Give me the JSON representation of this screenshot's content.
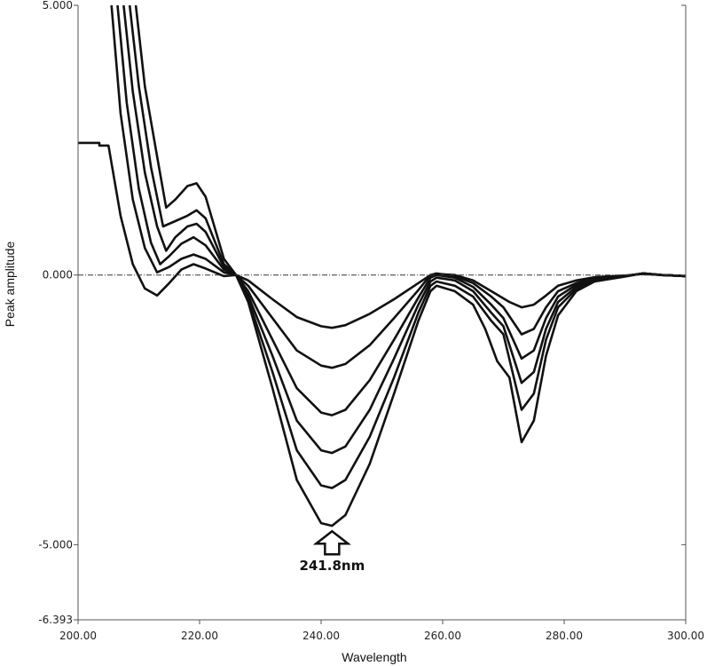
{
  "chart_data": {
    "type": "line",
    "title": "",
    "xlabel": "Wavelength",
    "ylabel": "Peak amplitude",
    "xlim": [
      200,
      300
    ],
    "ylim": [
      -6.393,
      5.0
    ],
    "x_tick_labels": [
      "200.00",
      "220.00",
      "240.00",
      "260.00",
      "280.00",
      "300.00"
    ],
    "x_ticks": [
      200,
      220,
      240,
      260,
      280,
      300
    ],
    "y_tick_labels": [
      "5.000",
      "0.000",
      "-5.000",
      "-6.393"
    ],
    "y_ticks": [
      5.0,
      0.0,
      -5.0,
      -6.393
    ],
    "zero_line": true,
    "grid": false,
    "legend": "none",
    "annotation": {
      "text": "241.8nm",
      "x": 241.8,
      "y": -4.75,
      "marker": "up-arrow"
    },
    "series": [
      {
        "points": [
          [
            200,
            2.45
          ],
          [
            203.5,
            2.45
          ],
          [
            203.5,
            2.4
          ],
          [
            205,
            2.4
          ],
          [
            207,
            1.1
          ],
          [
            209,
            0.2
          ],
          [
            211,
            -0.25
          ],
          [
            213,
            -0.38
          ],
          [
            215,
            -0.15
          ],
          [
            217,
            0.1
          ],
          [
            219,
            0.2
          ],
          [
            221,
            0.12
          ],
          [
            224,
            -0.02
          ],
          [
            226,
            0
          ],
          [
            228,
            -0.1
          ],
          [
            232,
            -0.45
          ],
          [
            236,
            -0.78
          ],
          [
            240,
            -0.95
          ],
          [
            241.8,
            -0.98
          ],
          [
            244,
            -0.93
          ],
          [
            248,
            -0.72
          ],
          [
            252,
            -0.45
          ],
          [
            256,
            -0.15
          ],
          [
            258,
            0
          ],
          [
            259,
            0.02
          ],
          [
            262,
            0
          ],
          [
            265,
            -0.1
          ],
          [
            268,
            -0.3
          ],
          [
            271,
            -0.5
          ],
          [
            273,
            -0.6
          ],
          [
            275,
            -0.55
          ],
          [
            277,
            -0.38
          ],
          [
            279,
            -0.2
          ],
          [
            282,
            -0.1
          ],
          [
            285,
            -0.04
          ],
          [
            290,
            -0.01
          ],
          [
            293,
            0.02
          ],
          [
            296,
            0
          ],
          [
            300,
            -0.02
          ]
        ]
      },
      {
        "points": [
          [
            205.5,
            5.0
          ],
          [
            207,
            3.0
          ],
          [
            209,
            1.4
          ],
          [
            211,
            0.5
          ],
          [
            213,
            0.05
          ],
          [
            215,
            0.15
          ],
          [
            217,
            0.3
          ],
          [
            219,
            0.38
          ],
          [
            221,
            0.3
          ],
          [
            224,
            0.05
          ],
          [
            226,
            0
          ],
          [
            228,
            -0.2
          ],
          [
            232,
            -0.8
          ],
          [
            236,
            -1.4
          ],
          [
            240,
            -1.68
          ],
          [
            241.8,
            -1.72
          ],
          [
            244,
            -1.65
          ],
          [
            248,
            -1.3
          ],
          [
            252,
            -0.8
          ],
          [
            256,
            -0.28
          ],
          [
            258,
            0
          ],
          [
            259,
            0.03
          ],
          [
            262,
            -0.02
          ],
          [
            265,
            -0.15
          ],
          [
            268,
            -0.4
          ],
          [
            270,
            -0.6
          ],
          [
            273,
            -1.1
          ],
          [
            275,
            -1.0
          ],
          [
            277,
            -0.6
          ],
          [
            279,
            -0.3
          ],
          [
            282,
            -0.15
          ],
          [
            285,
            -0.06
          ],
          [
            290,
            -0.02
          ],
          [
            293,
            0.03
          ],
          [
            296,
            0
          ],
          [
            300,
            -0.02
          ]
        ]
      },
      {
        "points": [
          [
            206.5,
            5.0
          ],
          [
            208,
            3.2
          ],
          [
            210,
            1.6
          ],
          [
            212,
            0.6
          ],
          [
            213.5,
            0.2
          ],
          [
            215,
            0.35
          ],
          [
            217,
            0.58
          ],
          [
            219,
            0.7
          ],
          [
            221,
            0.55
          ],
          [
            224,
            0.1
          ],
          [
            226,
            0
          ],
          [
            228,
            -0.3
          ],
          [
            232,
            -1.2
          ],
          [
            236,
            -2.1
          ],
          [
            240,
            -2.55
          ],
          [
            241.8,
            -2.6
          ],
          [
            244,
            -2.5
          ],
          [
            248,
            -1.95
          ],
          [
            252,
            -1.2
          ],
          [
            256,
            -0.42
          ],
          [
            258,
            -0.05
          ],
          [
            259,
            0
          ],
          [
            262,
            -0.05
          ],
          [
            265,
            -0.22
          ],
          [
            268,
            -0.55
          ],
          [
            270,
            -0.8
          ],
          [
            273,
            -1.55
          ],
          [
            275,
            -1.4
          ],
          [
            277,
            -0.8
          ],
          [
            279,
            -0.4
          ],
          [
            282,
            -0.18
          ],
          [
            285,
            -0.07
          ],
          [
            290,
            -0.02
          ],
          [
            293,
            0.03
          ],
          [
            296,
            0
          ],
          [
            300,
            -0.02
          ]
        ]
      },
      {
        "points": [
          [
            207.5,
            5.0
          ],
          [
            209,
            3.4
          ],
          [
            211,
            1.9
          ],
          [
            213,
            0.9
          ],
          [
            214.5,
            0.45
          ],
          [
            216,
            0.7
          ],
          [
            218,
            0.9
          ],
          [
            219.5,
            0.95
          ],
          [
            221,
            0.8
          ],
          [
            224,
            0.15
          ],
          [
            226,
            0
          ],
          [
            228,
            -0.38
          ],
          [
            232,
            -1.5
          ],
          [
            236,
            -2.7
          ],
          [
            240,
            -3.25
          ],
          [
            241.8,
            -3.3
          ],
          [
            244,
            -3.18
          ],
          [
            248,
            -2.5
          ],
          [
            252,
            -1.55
          ],
          [
            256,
            -0.55
          ],
          [
            258,
            -0.12
          ],
          [
            259,
            -0.05
          ],
          [
            262,
            -0.1
          ],
          [
            265,
            -0.3
          ],
          [
            268,
            -0.7
          ],
          [
            270,
            -0.95
          ],
          [
            273,
            -2.0
          ],
          [
            275,
            -1.8
          ],
          [
            277,
            -1.0
          ],
          [
            279,
            -0.5
          ],
          [
            282,
            -0.22
          ],
          [
            285,
            -0.09
          ],
          [
            290,
            -0.02
          ],
          [
            293,
            0.03
          ],
          [
            296,
            0
          ],
          [
            300,
            -0.02
          ]
        ]
      },
      {
        "points": [
          [
            208.5,
            5.0
          ],
          [
            210,
            3.5
          ],
          [
            212,
            2.0
          ],
          [
            214,
            0.9
          ],
          [
            216,
            1.0
          ],
          [
            218,
            1.1
          ],
          [
            219.5,
            1.2
          ],
          [
            221,
            1.05
          ],
          [
            224,
            0.2
          ],
          [
            226,
            0
          ],
          [
            228,
            -0.45
          ],
          [
            232,
            -1.8
          ],
          [
            236,
            -3.25
          ],
          [
            240,
            -3.9
          ],
          [
            241.8,
            -3.95
          ],
          [
            244,
            -3.8
          ],
          [
            248,
            -3.0
          ],
          [
            252,
            -1.9
          ],
          [
            256,
            -0.7
          ],
          [
            258,
            -0.2
          ],
          [
            259,
            -0.12
          ],
          [
            262,
            -0.2
          ],
          [
            265,
            -0.4
          ],
          [
            268,
            -0.85
          ],
          [
            270,
            -1.1
          ],
          [
            273,
            -2.5
          ],
          [
            275,
            -2.2
          ],
          [
            277,
            -1.2
          ],
          [
            279,
            -0.6
          ],
          [
            282,
            -0.26
          ],
          [
            285,
            -0.1
          ],
          [
            290,
            -0.02
          ],
          [
            293,
            0.03
          ],
          [
            296,
            0
          ],
          [
            300,
            -0.02
          ]
        ]
      },
      {
        "points": [
          [
            209.5,
            5.0
          ],
          [
            211,
            3.5
          ],
          [
            213,
            2.2
          ],
          [
            214.5,
            1.25
          ],
          [
            216,
            1.4
          ],
          [
            218,
            1.65
          ],
          [
            219.5,
            1.7
          ],
          [
            221,
            1.45
          ],
          [
            224,
            0.3
          ],
          [
            226,
            0
          ],
          [
            228,
            -0.5
          ],
          [
            232,
            -2.1
          ],
          [
            236,
            -3.8
          ],
          [
            240,
            -4.6
          ],
          [
            241.8,
            -4.65
          ],
          [
            244,
            -4.45
          ],
          [
            248,
            -3.5
          ],
          [
            252,
            -2.2
          ],
          [
            256,
            -0.85
          ],
          [
            258,
            -0.3
          ],
          [
            259,
            -0.2
          ],
          [
            262,
            -0.3
          ],
          [
            265,
            -0.55
          ],
          [
            267,
            -1.0
          ],
          [
            269,
            -1.6
          ],
          [
            271,
            -1.9
          ],
          [
            273,
            -3.1
          ],
          [
            275,
            -2.7
          ],
          [
            277,
            -1.5
          ],
          [
            279,
            -0.75
          ],
          [
            282,
            -0.3
          ],
          [
            285,
            -0.12
          ],
          [
            290,
            -0.03
          ],
          [
            293,
            0.03
          ],
          [
            296,
            0
          ],
          [
            300,
            -0.02
          ]
        ]
      }
    ]
  }
}
